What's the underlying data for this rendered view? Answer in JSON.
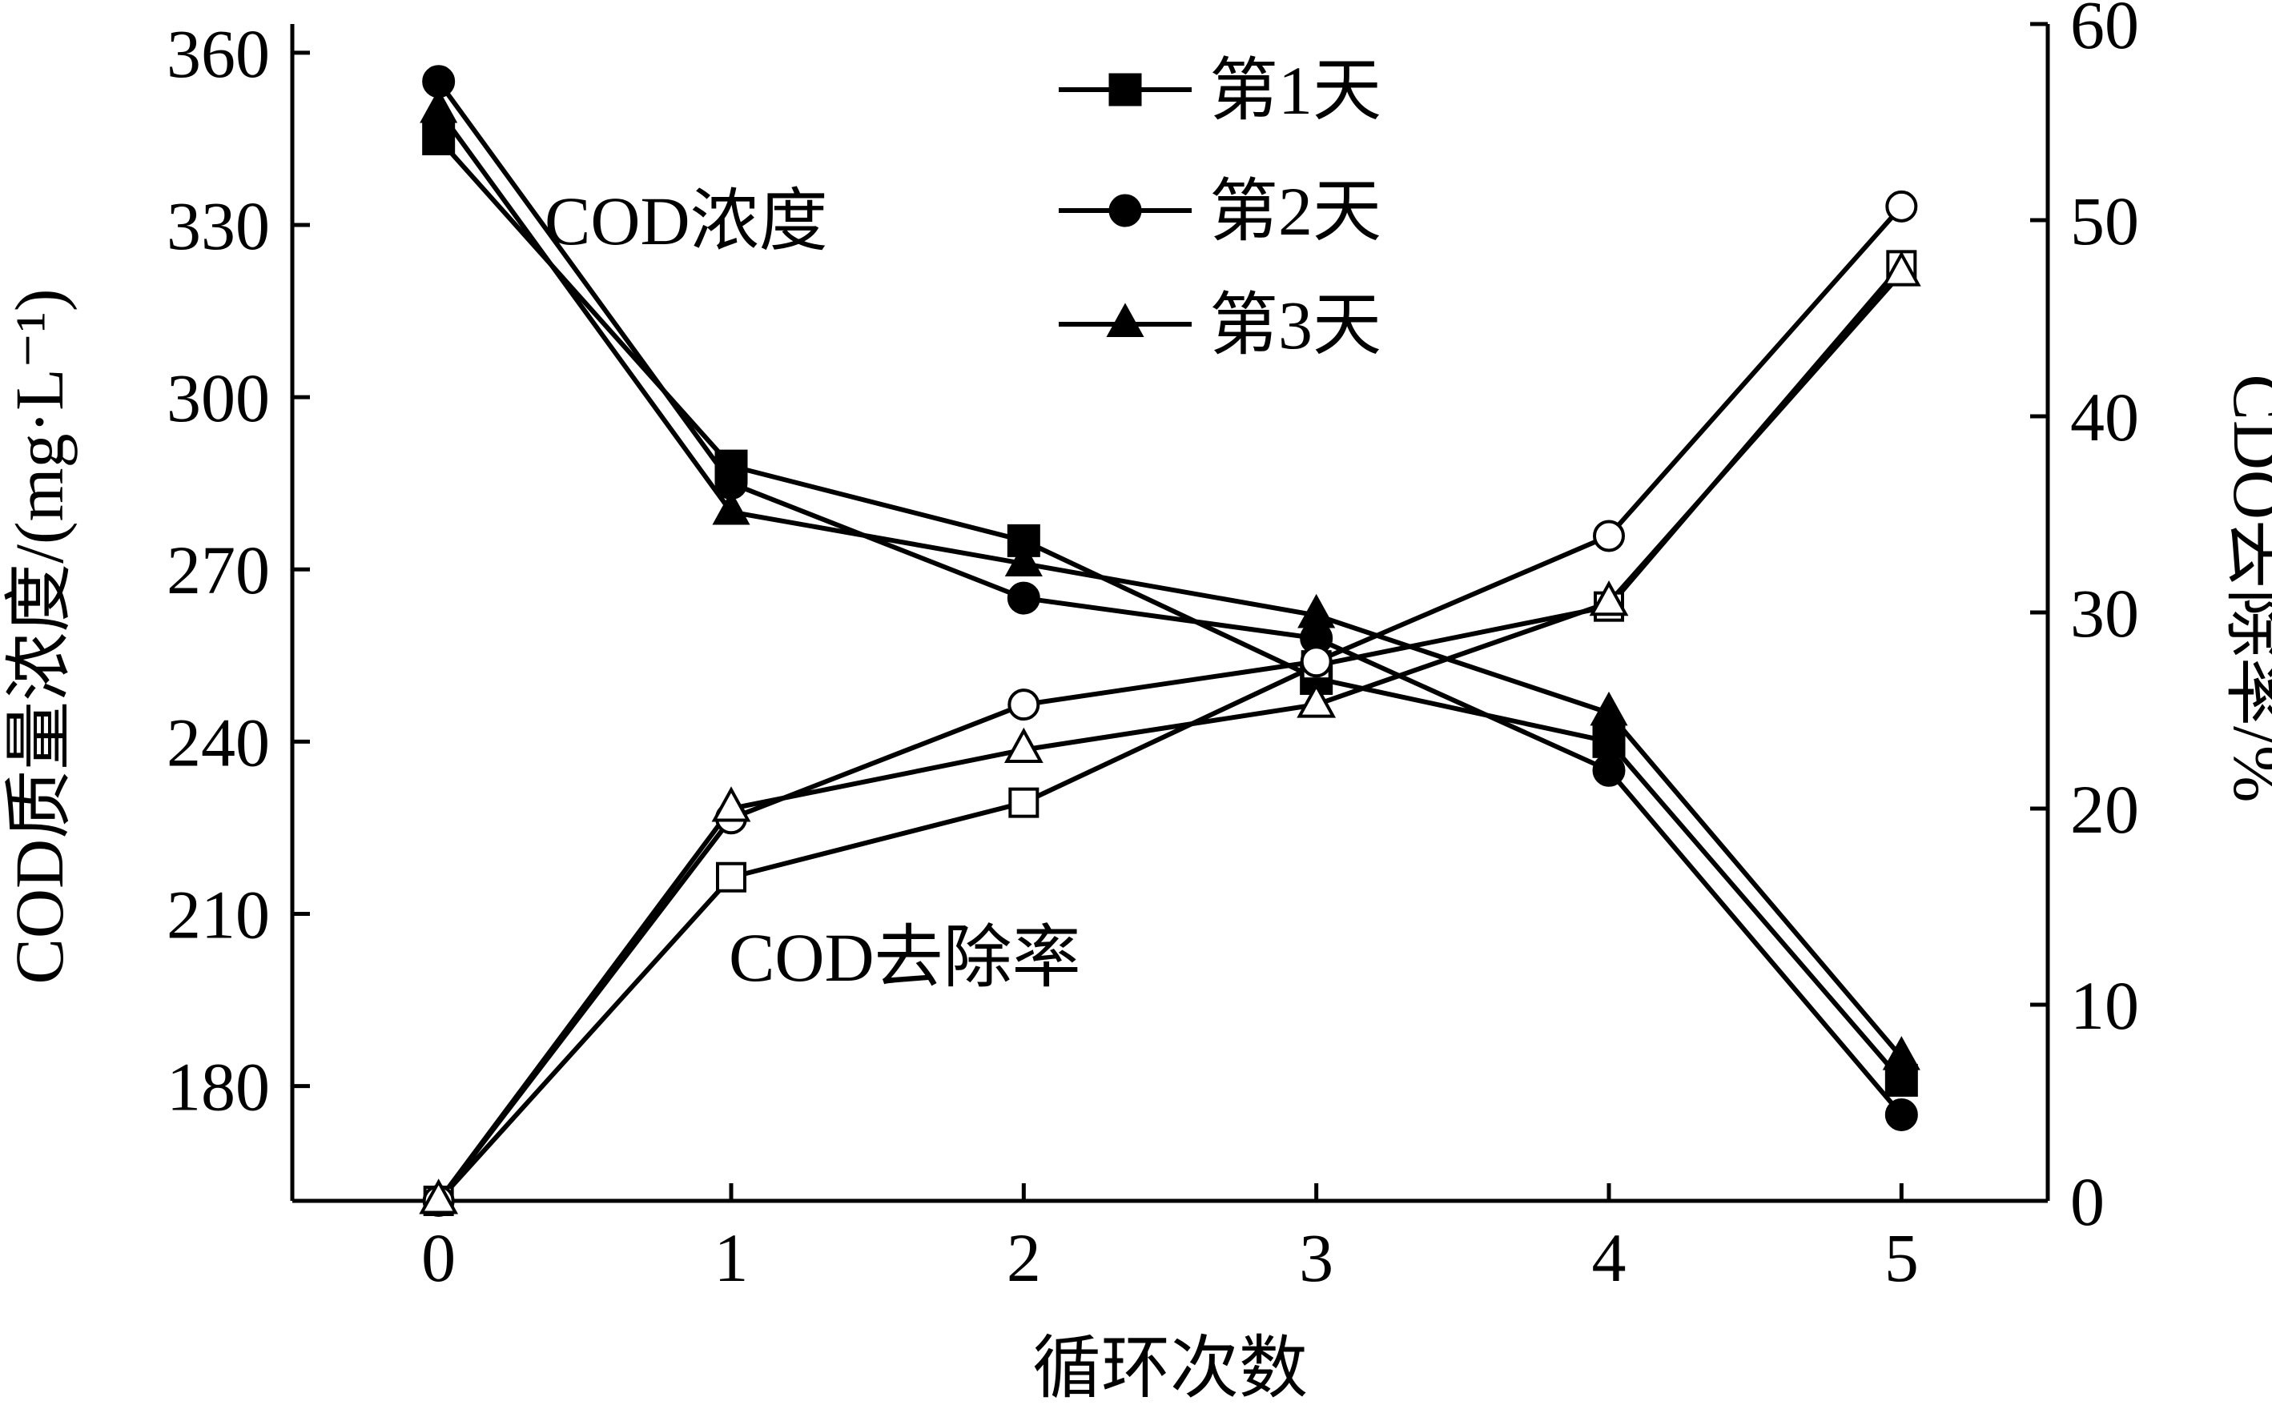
{
  "chart_data": {
    "type": "line",
    "title": "",
    "xlabel": "循环次数",
    "ylabel_left": "COD质量浓度/(mg·L⁻¹)",
    "ylabel_right": "CDO去除率/%",
    "x": [
      0,
      1,
      2,
      3,
      4,
      5
    ],
    "x_ticks": [
      "0",
      "1",
      "2",
      "3",
      "4",
      "5"
    ],
    "xlim": [
      -0.5,
      5.5
    ],
    "ylim_left": [
      160,
      365
    ],
    "ylim_right": [
      0,
      60
    ],
    "yticks_left": [
      "180",
      "210",
      "240",
      "270",
      "300",
      "330",
      "360"
    ],
    "yticks_right": [
      "0",
      "10",
      "20",
      "30",
      "40",
      "50",
      "60"
    ],
    "grid": false,
    "legend_position": "top-center",
    "annotations": {
      "concentration": "COD浓度",
      "removal": "COD去除率"
    },
    "series": [
      {
        "name": "第1天",
        "marker": "square",
        "axis": "left",
        "group": "concentration",
        "values": [
          345,
          288,
          275,
          251,
          240,
          181
        ]
      },
      {
        "name": "第2天",
        "marker": "circle",
        "axis": "left",
        "group": "concentration",
        "values": [
          355,
          285,
          265,
          258,
          235,
          175
        ]
      },
      {
        "name": "第3天",
        "marker": "triangle",
        "axis": "left",
        "group": "concentration",
        "values": [
          350,
          280,
          271,
          262,
          245,
          185
        ]
      },
      {
        "name": "第1天",
        "marker": "square",
        "axis": "right",
        "group": "removal",
        "values": [
          0,
          16.5,
          20.3,
          27.3,
          30.3,
          47.7
        ]
      },
      {
        "name": "第2天",
        "marker": "circle",
        "axis": "right",
        "group": "removal",
        "values": [
          0,
          19.5,
          25.3,
          27.5,
          33.9,
          50.7
        ]
      },
      {
        "name": "第3天",
        "marker": "triangle",
        "axis": "right",
        "group": "removal",
        "values": [
          0,
          20.0,
          23.0,
          25.3,
          30.5,
          47.3
        ]
      }
    ],
    "legend": [
      {
        "label": "第1天",
        "marker": "square"
      },
      {
        "label": "第2天",
        "marker": "circle"
      },
      {
        "label": "第3天",
        "marker": "triangle"
      }
    ]
  }
}
